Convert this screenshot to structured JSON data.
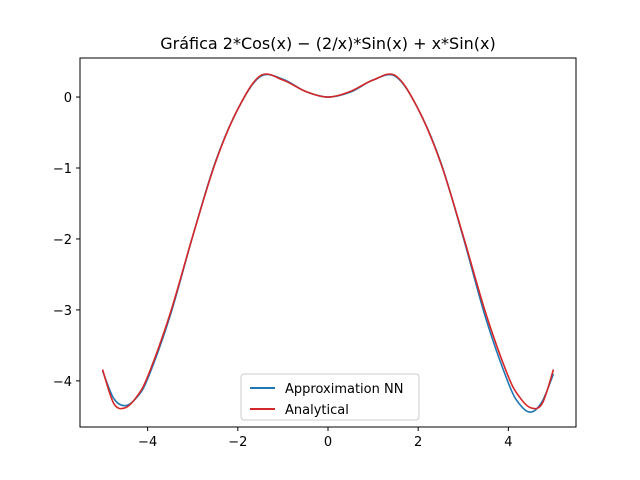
{
  "chart_data": {
    "type": "line",
    "title": "Gráfica 2*Cos(x) − (2/x)*Sin(x) + x*Sin(x)",
    "xlabel": "",
    "ylabel": "",
    "xlim": [
      -5.5,
      5.5
    ],
    "ylim": [
      -4.65,
      0.55
    ],
    "x_ticks": [
      -4,
      -2,
      0,
      2,
      4
    ],
    "y_ticks": [
      0,
      -1,
      -2,
      -3,
      -4
    ],
    "x_tick_labels": [
      "−4",
      "−2",
      "0",
      "2",
      "4"
    ],
    "y_tick_labels": [
      "0",
      "−1",
      "−2",
      "−3",
      "−4"
    ],
    "grid": false,
    "legend_position": "lower-center",
    "x_domain": [
      -5,
      5
    ],
    "series": [
      {
        "name": "Approximation NN",
        "color": "#1f77b4",
        "x": [
          -5,
          -4.75,
          -4.5,
          -4.25,
          -4,
          -3.5,
          -3,
          -2.5,
          -2,
          -1.5,
          -1,
          -0.5,
          0,
          0.5,
          1,
          1.5,
          2,
          2.5,
          3,
          3.5,
          4,
          4.25,
          4.5,
          4.75,
          5
        ],
        "y": [
          -3.86,
          -4.25,
          -4.35,
          -4.24,
          -3.97,
          -3.08,
          -1.96,
          -0.92,
          -0.17,
          0.29,
          0.25,
          0.08,
          0.0,
          0.07,
          0.24,
          0.29,
          -0.17,
          -0.92,
          -1.98,
          -3.12,
          -4.03,
          -4.33,
          -4.44,
          -4.29,
          -3.9
        ]
      },
      {
        "name": "Analytical",
        "color": "#d62728",
        "x": [
          -5,
          -4.75,
          -4.5,
          -4.25,
          -4,
          -3.5,
          -3,
          -2.5,
          -2,
          -1.5,
          -1,
          -0.5,
          0,
          0.5,
          1,
          1.5,
          2,
          2.5,
          3,
          3.5,
          4,
          4.25,
          4.5,
          4.75,
          5
        ],
        "y": [
          -3.84,
          -4.32,
          -4.38,
          -4.23,
          -3.94,
          -3.05,
          -1.96,
          -0.93,
          -0.17,
          0.3,
          0.24,
          0.08,
          0.0,
          0.08,
          0.24,
          0.3,
          -0.17,
          -0.93,
          -1.96,
          -3.05,
          -3.94,
          -4.23,
          -4.38,
          -4.32,
          -3.84
        ]
      }
    ]
  }
}
